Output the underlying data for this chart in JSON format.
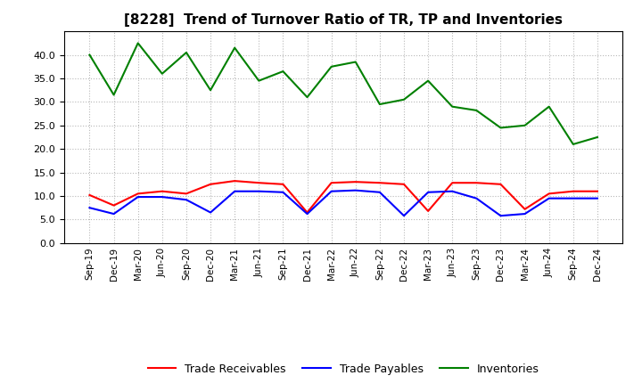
{
  "title": "[8228]  Trend of Turnover Ratio of TR, TP and Inventories",
  "labels": [
    "Sep-19",
    "Dec-19",
    "Mar-20",
    "Jun-20",
    "Sep-20",
    "Dec-20",
    "Mar-21",
    "Jun-21",
    "Sep-21",
    "Dec-21",
    "Mar-22",
    "Jun-22",
    "Sep-22",
    "Dec-22",
    "Mar-23",
    "Jun-23",
    "Sep-23",
    "Dec-23",
    "Mar-24",
    "Jun-24",
    "Sep-24",
    "Dec-24"
  ],
  "trade_receivables": [
    10.2,
    8.0,
    10.5,
    11.0,
    10.5,
    12.5,
    13.2,
    12.8,
    12.5,
    6.5,
    12.8,
    13.0,
    12.8,
    12.5,
    6.8,
    12.8,
    12.8,
    12.5,
    7.2,
    10.5,
    11.0,
    11.0
  ],
  "trade_payables": [
    7.5,
    6.2,
    9.8,
    9.8,
    9.2,
    6.5,
    11.0,
    11.0,
    10.8,
    6.2,
    11.0,
    11.2,
    10.8,
    5.8,
    10.8,
    11.0,
    9.5,
    5.8,
    6.2,
    9.5,
    9.5,
    9.5
  ],
  "inventories": [
    40.0,
    31.5,
    42.5,
    36.0,
    40.5,
    32.5,
    41.5,
    34.5,
    36.5,
    31.0,
    37.5,
    38.5,
    29.5,
    30.5,
    34.5,
    29.0,
    28.2,
    24.5,
    25.0,
    29.0,
    21.0,
    22.5
  ],
  "tr_color": "#ff0000",
  "tp_color": "#0000ff",
  "inv_color": "#008000",
  "ylim": [
    0,
    45
  ],
  "yticks": [
    0.0,
    5.0,
    10.0,
    15.0,
    20.0,
    25.0,
    30.0,
    35.0,
    40.0
  ],
  "background_color": "#ffffff",
  "grid_color": "#999999",
  "legend_labels": [
    "Trade Receivables",
    "Trade Payables",
    "Inventories"
  ]
}
